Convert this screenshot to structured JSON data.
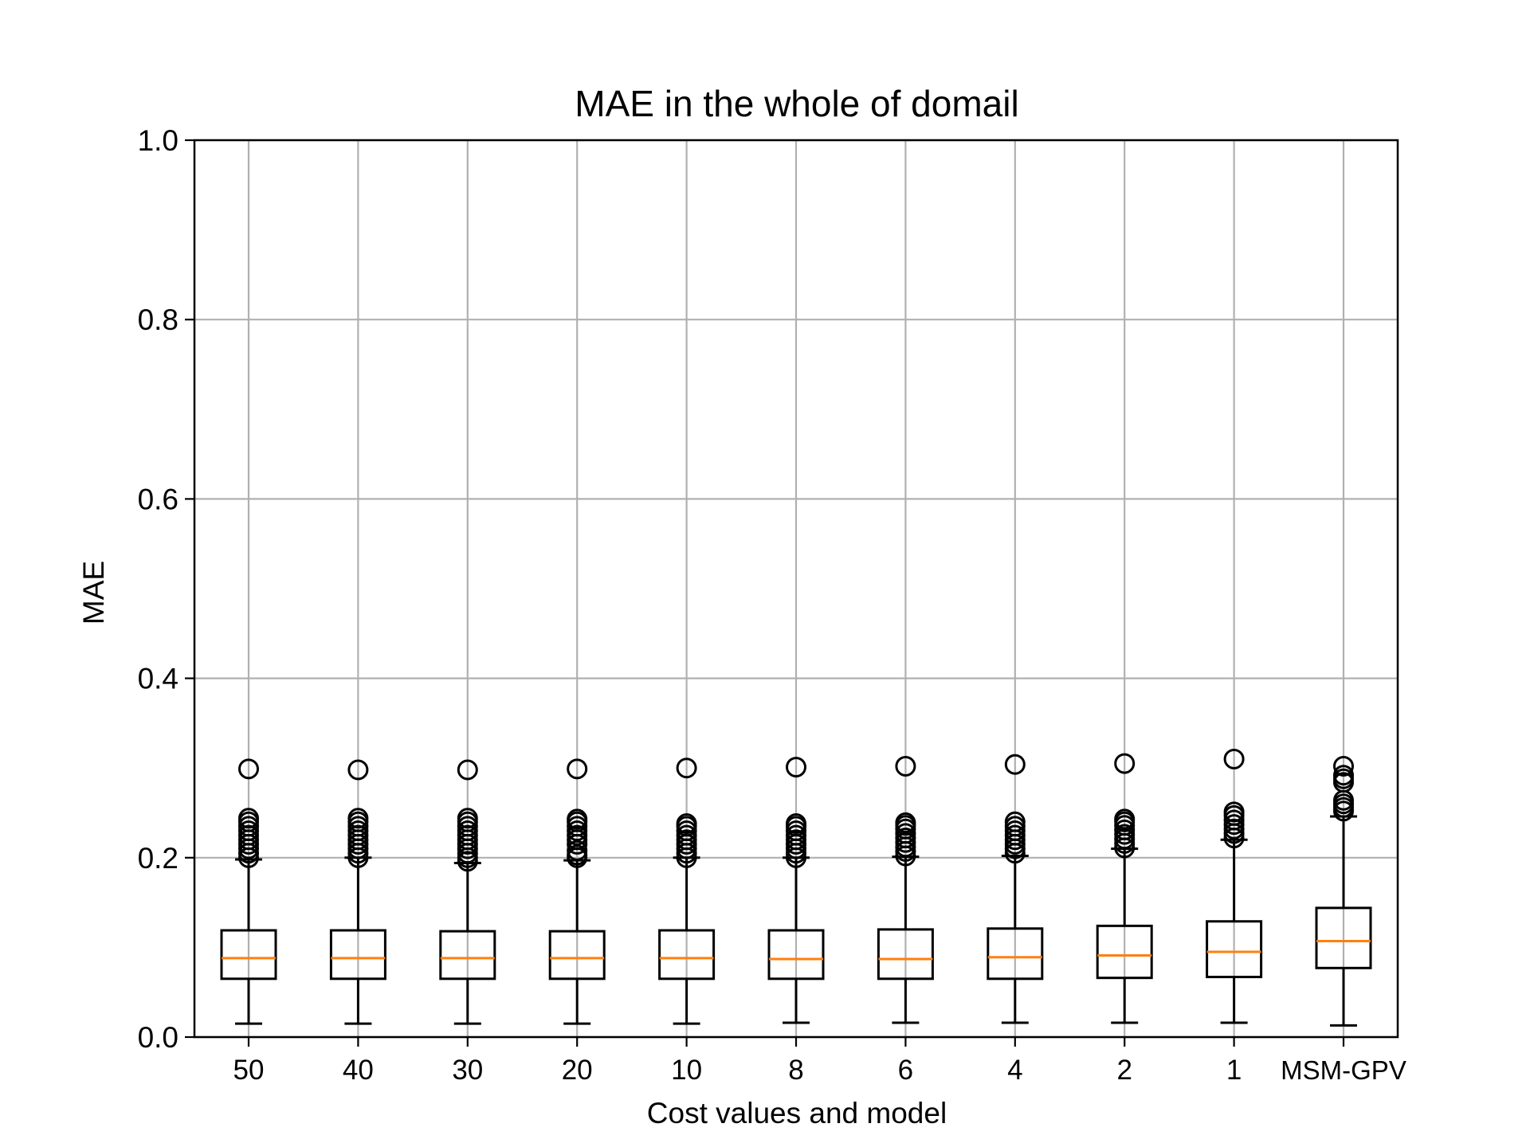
{
  "chart_data": {
    "type": "box",
    "title": "MAE in the whole of domail",
    "xlabel": "Cost values and model",
    "ylabel": "MAE",
    "ylim": [
      0.0,
      1.0
    ],
    "yticks": [
      "0.0",
      "0.2",
      "0.4",
      "0.6",
      "0.8",
      "1.0"
    ],
    "grid": true,
    "categories": [
      "50",
      "40",
      "30",
      "20",
      "10",
      "8",
      "6",
      "4",
      "2",
      "1",
      "MSM-GPV"
    ],
    "boxes": [
      {
        "whisker_low": 0.015,
        "q1": 0.065,
        "median": 0.088,
        "q3": 0.119,
        "whisker_high": 0.198,
        "outliers": [
          0.2,
          0.205,
          0.21,
          0.215,
          0.22,
          0.225,
          0.23,
          0.235,
          0.24,
          0.244,
          0.299
        ]
      },
      {
        "whisker_low": 0.015,
        "q1": 0.065,
        "median": 0.088,
        "q3": 0.119,
        "whisker_high": 0.2,
        "outliers": [
          0.2,
          0.205,
          0.21,
          0.215,
          0.22,
          0.225,
          0.23,
          0.235,
          0.24,
          0.244,
          0.298
        ]
      },
      {
        "whisker_low": 0.015,
        "q1": 0.065,
        "median": 0.088,
        "q3": 0.118,
        "whisker_high": 0.194,
        "outliers": [
          0.196,
          0.2,
          0.205,
          0.21,
          0.215,
          0.22,
          0.225,
          0.23,
          0.235,
          0.24,
          0.244,
          0.298
        ]
      },
      {
        "whisker_low": 0.015,
        "q1": 0.065,
        "median": 0.088,
        "q3": 0.118,
        "whisker_high": 0.197,
        "outliers": [
          0.2,
          0.203,
          0.208,
          0.215,
          0.22,
          0.225,
          0.23,
          0.235,
          0.24,
          0.243,
          0.299
        ]
      },
      {
        "whisker_low": 0.015,
        "q1": 0.065,
        "median": 0.088,
        "q3": 0.119,
        "whisker_high": 0.2,
        "outliers": [
          0.2,
          0.205,
          0.21,
          0.215,
          0.22,
          0.225,
          0.23,
          0.235,
          0.238,
          0.3
        ]
      },
      {
        "whisker_low": 0.016,
        "q1": 0.065,
        "median": 0.087,
        "q3": 0.119,
        "whisker_high": 0.2,
        "outliers": [
          0.2,
          0.205,
          0.21,
          0.215,
          0.22,
          0.225,
          0.23,
          0.235,
          0.238,
          0.301
        ]
      },
      {
        "whisker_low": 0.016,
        "q1": 0.065,
        "median": 0.087,
        "q3": 0.12,
        "whisker_high": 0.201,
        "outliers": [
          0.202,
          0.207,
          0.212,
          0.217,
          0.222,
          0.227,
          0.232,
          0.236,
          0.239,
          0.302
        ]
      },
      {
        "whisker_low": 0.016,
        "q1": 0.065,
        "median": 0.089,
        "q3": 0.121,
        "whisker_high": 0.202,
        "outliers": [
          0.205,
          0.21,
          0.215,
          0.22,
          0.225,
          0.23,
          0.235,
          0.24,
          0.304
        ]
      },
      {
        "whisker_low": 0.016,
        "q1": 0.066,
        "median": 0.091,
        "q3": 0.124,
        "whisker_high": 0.21,
        "outliers": [
          0.211,
          0.216,
          0.221,
          0.226,
          0.231,
          0.236,
          0.24,
          0.243,
          0.305
        ]
      },
      {
        "whisker_low": 0.016,
        "q1": 0.067,
        "median": 0.095,
        "q3": 0.129,
        "whisker_high": 0.22,
        "outliers": [
          0.222,
          0.227,
          0.232,
          0.237,
          0.242,
          0.247,
          0.251,
          0.31
        ]
      },
      {
        "whisker_low": 0.013,
        "q1": 0.077,
        "median": 0.107,
        "q3": 0.144,
        "whisker_high": 0.246,
        "outliers": [
          0.252,
          0.256,
          0.26,
          0.264,
          0.284,
          0.288,
          0.292,
          0.302
        ]
      }
    ],
    "colors": {
      "box": "#000000",
      "median": "#ff7f0e",
      "grid": "#b0b0b0"
    }
  }
}
